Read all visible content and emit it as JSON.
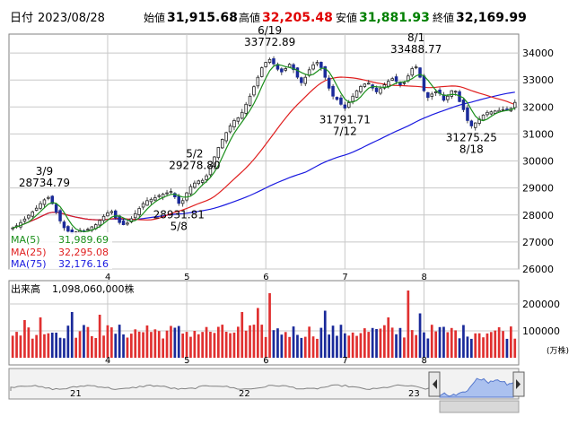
{
  "header": {
    "date_label": "日付",
    "date": "2023/08/28",
    "open_label": "始値",
    "open": "31,915.68",
    "high_label": "高値",
    "high": "32,205.48",
    "low_label": "安値",
    "low": "31,881.93",
    "close_label": "終値",
    "close": "32,169.99"
  },
  "colors": {
    "up": "#e03030",
    "down": "#1a2a9a",
    "high_value": "#e00000",
    "low_value": "#008000",
    "ma5": "#1a8f1a",
    "ma25": "#e02020",
    "ma75": "#1a1ae0",
    "grid": "#c8c8c8",
    "frame": "#808080"
  },
  "legend": {
    "ma5_label": "MA(5)",
    "ma5_value": "31,989.69",
    "ma25_label": "MA(25)",
    "ma25_value": "32,295.08",
    "ma75_label": "MA(75)",
    "ma75_value": "32,176.16"
  },
  "volume": {
    "label": "出来高",
    "value": "1,098,060,000株",
    "unit": "(万株)"
  },
  "chart_data": [
    {
      "type": "candlestick",
      "ylim": [
        26000,
        34700
      ],
      "yticks": [
        26000,
        27000,
        28000,
        29000,
        30000,
        31000,
        32000,
        33000,
        34000
      ],
      "ytick_labels": [
        "26000",
        "27000",
        "28000",
        "29000",
        "30000",
        "31000",
        "32000",
        "33000",
        "34000"
      ],
      "x_tick_days": [
        24,
        44,
        64,
        84,
        104
      ],
      "x_tick_labels": [
        "4",
        "5",
        "6",
        "7",
        "8"
      ],
      "grid": true,
      "days": 128,
      "closes": [
        27520,
        27600,
        27720,
        27850,
        27990,
        28120,
        28250,
        28420,
        28560,
        28650,
        28420,
        28100,
        27780,
        27530,
        27400,
        27330,
        27370,
        27430,
        27380,
        27470,
        27560,
        27640,
        27800,
        27950,
        28080,
        28130,
        27900,
        27720,
        27640,
        27700,
        27860,
        28050,
        28240,
        28420,
        28530,
        28580,
        28640,
        28720,
        28770,
        28820,
        28870,
        28670,
        28430,
        28530,
        28820,
        29050,
        29180,
        29260,
        29280,
        29450,
        29800,
        30150,
        30500,
        30800,
        31050,
        31300,
        31500,
        31600,
        31800,
        32100,
        32400,
        32750,
        33100,
        33450,
        33650,
        33760,
        33600,
        33400,
        33300,
        33420,
        33580,
        33380,
        33100,
        32900,
        33100,
        33380,
        33560,
        33650,
        33460,
        33100,
        32700,
        32400,
        32280,
        32100,
        31960,
        32160,
        32400,
        32600,
        32760,
        32850,
        32880,
        32700,
        32560,
        32680,
        32820,
        32950,
        33050,
        32950,
        32820,
        32900,
        33150,
        33420,
        33480,
        33100,
        32600,
        32350,
        32480,
        32560,
        32500,
        32250,
        32400,
        32600,
        32580,
        32200,
        31900,
        31500,
        31300,
        31410,
        31550,
        31700,
        31800,
        31820,
        31850,
        31870,
        31900,
        31920,
        31950,
        32170
      ],
      "annotations": [
        {
          "label": "3/9",
          "value": "28734.79",
          "day": 8,
          "kind": "high"
        },
        {
          "label": "5/2",
          "value": "29278.80",
          "day": 46,
          "kind": "high"
        },
        {
          "label": "5/8",
          "value": "28931.81",
          "day": 42,
          "kind": "low"
        },
        {
          "label": "6/19",
          "value": "33772.89",
          "day": 65,
          "kind": "high"
        },
        {
          "label": "7/12",
          "value": "31791.71",
          "day": 84,
          "kind": "low"
        },
        {
          "label": "8/1",
          "value": "33488.77",
          "day": 102,
          "kind": "high"
        },
        {
          "label": "8/18",
          "value": "31275.25",
          "day": 116,
          "kind": "low"
        }
      ]
    },
    {
      "type": "bar",
      "ylim": [
        0,
        260000
      ],
      "yticks": [
        100000,
        200000
      ],
      "ytick_labels": [
        "100000",
        "200000"
      ],
      "x_tick_labels": [
        "4",
        "5",
        "6",
        "7",
        "8"
      ],
      "spikes": [
        {
          "day": 3,
          "value": 140000
        },
        {
          "day": 7,
          "value": 150000
        },
        {
          "day": 15,
          "value": 170000
        },
        {
          "day": 22,
          "value": 160000
        },
        {
          "day": 34,
          "value": 120000
        },
        {
          "day": 58,
          "value": 170000
        },
        {
          "day": 62,
          "value": 185000
        },
        {
          "day": 65,
          "value": 240000
        },
        {
          "day": 79,
          "value": 175000
        },
        {
          "day": 95,
          "value": 150000
        },
        {
          "day": 100,
          "value": 250000
        },
        {
          "day": 103,
          "value": 165000
        }
      ]
    }
  ],
  "navigator": {
    "labels": [
      "21",
      "22",
      "23"
    ]
  }
}
